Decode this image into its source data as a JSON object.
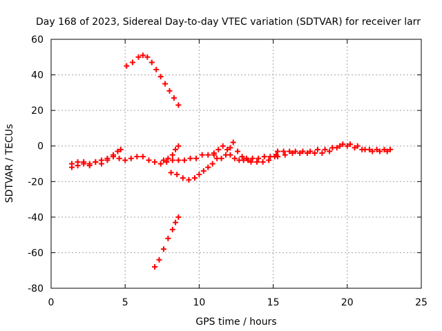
{
  "chart_data": {
    "type": "scatter",
    "title": "Day 168 of 2023, Sidereal Day-to-day VTEC variation (SDTVAR) for receiver larr",
    "xlabel": "GPS time / hours",
    "ylabel": "SDTVAR / TECUs",
    "xlim": [
      0,
      25
    ],
    "ylim": [
      -80,
      60
    ],
    "xticks": [
      0,
      5,
      10,
      15,
      20,
      25
    ],
    "yticks": [
      -80,
      -60,
      -40,
      -20,
      0,
      20,
      40,
      60
    ],
    "xtick_labels": [
      "0",
      "5",
      "10",
      "15",
      "20",
      "25"
    ],
    "ytick_labels": [
      "-80",
      "-60",
      "-40",
      "-20",
      "0",
      "20",
      "40",
      "60"
    ],
    "grid": true,
    "marker": "plus",
    "color": "#ff0000",
    "series": [
      {
        "x": [
          1.4,
          1.8,
          2.2,
          2.6,
          3.0,
          3.4,
          3.8,
          4.2,
          4.6,
          5.0,
          5.4,
          5.8,
          6.2,
          6.6,
          7.0,
          7.4,
          7.8,
          8.2,
          8.6,
          9.0,
          9.4,
          9.8,
          10.2,
          10.6,
          11.0
        ],
        "y": [
          -10,
          -9,
          -9,
          -11,
          -9,
          -8,
          -7,
          -6,
          -7,
          -8,
          -7,
          -6,
          -6,
          -8,
          -9,
          -10,
          -9,
          -8,
          -8,
          -8,
          -7,
          -7,
          -5,
          -5,
          -5
        ]
      },
      {
        "x": [
          1.4,
          1.8,
          2.2,
          2.6,
          3.0,
          3.4,
          3.8,
          4.2,
          4.5,
          4.7
        ],
        "y": [
          -12,
          -11,
          -10,
          -10,
          -9,
          -10,
          -8,
          -5,
          -3,
          -2
        ]
      },
      {
        "x": [
          5.1,
          5.5,
          5.9,
          6.2,
          6.5,
          6.8,
          7.1,
          7.4,
          7.7,
          8.0,
          8.3,
          8.6
        ],
        "y": [
          45,
          47,
          50,
          51,
          50,
          47,
          43,
          39,
          35,
          31,
          27,
          23
        ]
      },
      {
        "x": [
          7.0,
          7.3,
          7.6,
          7.9,
          8.2,
          8.4,
          8.6
        ],
        "y": [
          -68,
          -64,
          -58,
          -52,
          -47,
          -43,
          -40
        ]
      },
      {
        "x": [
          7.6,
          7.9,
          8.2,
          8.4,
          8.6
        ],
        "y": [
          -8,
          -7,
          -5,
          -2,
          0
        ]
      },
      {
        "x": [
          8.1,
          8.5,
          8.9,
          9.3,
          9.7,
          10.0,
          10.3,
          10.6,
          10.9
        ],
        "y": [
          -15,
          -16,
          -18,
          -19,
          -18,
          -16,
          -14,
          -12,
          -10
        ]
      },
      {
        "x": [
          11.0,
          11.3,
          11.6,
          11.9,
          12.1,
          12.4,
          12.7,
          13.0,
          13.3,
          13.6,
          14.0,
          14.4,
          14.8,
          15.2
        ],
        "y": [
          -4,
          -2,
          0,
          -2,
          -5,
          -7,
          -8,
          -8,
          -8,
          -7,
          -7,
          -6,
          -6,
          -5
        ]
      },
      {
        "x": [
          11.2,
          11.5,
          11.8,
          12.1,
          12.3,
          12.6,
          12.9,
          13.2,
          13.5,
          13.9,
          14.3,
          14.7,
          15.1
        ],
        "y": [
          -7,
          -7,
          -5,
          -1,
          2,
          -3,
          -6,
          -7,
          -9,
          -9,
          -9,
          -8,
          -6
        ]
      },
      {
        "x": [
          15.3,
          15.7,
          16.1,
          16.5,
          17.0,
          17.5,
          18.0,
          18.5,
          19.0,
          19.5,
          20.0,
          20.5,
          21.0,
          21.5,
          22.0,
          22.5,
          22.9
        ],
        "y": [
          -3,
          -3,
          -3,
          -3,
          -3,
          -3,
          -2,
          -2,
          -1,
          0,
          0,
          -1,
          -2,
          -2,
          -2,
          -2,
          -2
        ]
      },
      {
        "x": [
          15.3,
          15.8,
          16.3,
          16.8,
          17.3,
          17.8,
          18.3,
          18.8,
          19.3,
          19.7,
          20.2,
          20.7,
          21.2,
          21.7,
          22.2,
          22.7
        ],
        "y": [
          -6,
          -5,
          -4,
          -4,
          -4,
          -4,
          -4,
          -3,
          -1,
          1,
          1,
          0,
          -2,
          -3,
          -3,
          -3
        ]
      }
    ]
  }
}
